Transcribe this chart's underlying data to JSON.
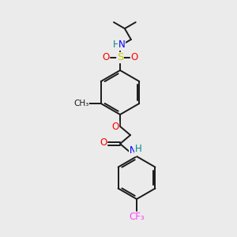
{
  "bg_color": "#ebebeb",
  "bond_color": "#1a1a1a",
  "atom_colors": {
    "N": "#0000ff",
    "O": "#ff0000",
    "S": "#cccc00",
    "F": "#ff44ff",
    "H": "#008888",
    "C": "#1a1a1a"
  },
  "font_size_atom": 8.5,
  "font_size_small": 7.5,
  "lw": 1.4
}
